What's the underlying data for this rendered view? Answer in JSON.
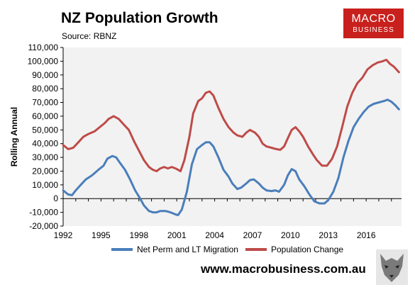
{
  "header": {
    "title": "NZ Population Growth",
    "source": "Source: RBNZ"
  },
  "logo": {
    "line1": "MACRO",
    "line2": "BUSINESS",
    "color": "#c8201c"
  },
  "footer": {
    "url": "www.macrobusiness.com.au"
  },
  "colors": {
    "migration": "#4a7ebb",
    "population": "#be4b48",
    "plot_bg": "#f2f2f2"
  },
  "chart_data": {
    "type": "line",
    "title": "NZ Population Growth",
    "ylabel": "Rolling Annual",
    "xlabel": "",
    "ylim": [
      -20000,
      110000
    ],
    "xlim": [
      1992,
      2018.8
    ],
    "grid": false,
    "legend_placement": "bottom",
    "x_tick_labels": [
      "1992",
      "1995",
      "1998",
      "2001",
      "2004",
      "2007",
      "2010",
      "2013",
      "2016"
    ],
    "y_tick_labels": [
      "110,000",
      "100,000",
      "90,000",
      "80,000",
      "70,000",
      "60,000",
      "50,000",
      "40,000",
      "30,000",
      "20,000",
      "10,000",
      "0",
      "-10,000",
      "-20,000"
    ],
    "series": [
      {
        "name": "Net Perm and LT Migration",
        "color": "#4a7ebb",
        "points": [
          [
            1992.0,
            6000
          ],
          [
            1992.4,
            3000
          ],
          [
            1992.7,
            2500
          ],
          [
            1993.0,
            6000
          ],
          [
            1993.4,
            10000
          ],
          [
            1993.8,
            14000
          ],
          [
            1994.3,
            17000
          ],
          [
            1994.8,
            21000
          ],
          [
            1995.2,
            24000
          ],
          [
            1995.5,
            29000
          ],
          [
            1995.9,
            31000
          ],
          [
            1996.2,
            30000
          ],
          [
            1996.5,
            26000
          ],
          [
            1996.9,
            21000
          ],
          [
            1997.3,
            14000
          ],
          [
            1997.7,
            6000
          ],
          [
            1998.1,
            0
          ],
          [
            1998.4,
            -5000
          ],
          [
            1998.8,
            -9000
          ],
          [
            1999.1,
            -10000
          ],
          [
            1999.4,
            -10000
          ],
          [
            1999.7,
            -9000
          ],
          [
            2000.1,
            -9000
          ],
          [
            2000.5,
            -10000
          ],
          [
            2000.9,
            -11500
          ],
          [
            2001.1,
            -12000
          ],
          [
            2001.4,
            -8000
          ],
          [
            2001.8,
            5000
          ],
          [
            2002.2,
            25000
          ],
          [
            2002.6,
            36000
          ],
          [
            2003.0,
            39000
          ],
          [
            2003.3,
            41000
          ],
          [
            2003.6,
            41000
          ],
          [
            2003.9,
            38000
          ],
          [
            2004.3,
            30000
          ],
          [
            2004.7,
            21000
          ],
          [
            2005.1,
            16000
          ],
          [
            2005.4,
            11000
          ],
          [
            2005.8,
            7000
          ],
          [
            2006.1,
            8000
          ],
          [
            2006.5,
            11000
          ],
          [
            2006.8,
            13500
          ],
          [
            2007.1,
            14000
          ],
          [
            2007.5,
            11000
          ],
          [
            2007.8,
            8000
          ],
          [
            2008.1,
            6000
          ],
          [
            2008.5,
            5500
          ],
          [
            2008.8,
            6000
          ],
          [
            2009.1,
            5000
          ],
          [
            2009.5,
            10000
          ],
          [
            2009.8,
            17000
          ],
          [
            2010.1,
            21500
          ],
          [
            2010.4,
            20000
          ],
          [
            2010.7,
            14000
          ],
          [
            2011.1,
            9000
          ],
          [
            2011.5,
            3000
          ],
          [
            2011.9,
            -2000
          ],
          [
            2012.3,
            -3500
          ],
          [
            2012.7,
            -3500
          ],
          [
            2013.0,
            -1000
          ],
          [
            2013.4,
            5000
          ],
          [
            2013.8,
            15000
          ],
          [
            2014.2,
            30000
          ],
          [
            2014.6,
            42000
          ],
          [
            2015.0,
            52000
          ],
          [
            2015.4,
            58000
          ],
          [
            2015.8,
            63000
          ],
          [
            2016.2,
            67000
          ],
          [
            2016.6,
            69000
          ],
          [
            2017.0,
            70000
          ],
          [
            2017.4,
            71000
          ],
          [
            2017.7,
            72000
          ],
          [
            2018.0,
            70500
          ],
          [
            2018.3,
            68000
          ],
          [
            2018.6,
            65000
          ]
        ]
      },
      {
        "name": "Population Change",
        "color": "#be4b48",
        "points": [
          [
            1992.0,
            39000
          ],
          [
            1992.4,
            36000
          ],
          [
            1992.8,
            37000
          ],
          [
            1993.2,
            41000
          ],
          [
            1993.6,
            45000
          ],
          [
            1994.0,
            47000
          ],
          [
            1994.5,
            49000
          ],
          [
            1994.9,
            52000
          ],
          [
            1995.3,
            55000
          ],
          [
            1995.6,
            58000
          ],
          [
            1996.0,
            60000
          ],
          [
            1996.4,
            58000
          ],
          [
            1996.8,
            54000
          ],
          [
            1997.2,
            50000
          ],
          [
            1997.6,
            42000
          ],
          [
            1998.0,
            35000
          ],
          [
            1998.4,
            28000
          ],
          [
            1998.8,
            23000
          ],
          [
            1999.1,
            21000
          ],
          [
            1999.4,
            20000
          ],
          [
            1999.7,
            22000
          ],
          [
            2000.0,
            23000
          ],
          [
            2000.3,
            22000
          ],
          [
            2000.6,
            23000
          ],
          [
            2000.9,
            22000
          ],
          [
            2001.3,
            20000
          ],
          [
            2001.6,
            28000
          ],
          [
            2002.0,
            45000
          ],
          [
            2002.3,
            62000
          ],
          [
            2002.7,
            71000
          ],
          [
            2003.0,
            73000
          ],
          [
            2003.3,
            77000
          ],
          [
            2003.6,
            78000
          ],
          [
            2003.9,
            75000
          ],
          [
            2004.3,
            66000
          ],
          [
            2004.7,
            58000
          ],
          [
            2005.1,
            52000
          ],
          [
            2005.5,
            48000
          ],
          [
            2005.8,
            46000
          ],
          [
            2006.2,
            45000
          ],
          [
            2006.5,
            48000
          ],
          [
            2006.8,
            50000
          ],
          [
            2007.2,
            48000
          ],
          [
            2007.5,
            45000
          ],
          [
            2007.8,
            40000
          ],
          [
            2008.1,
            38000
          ],
          [
            2008.5,
            37000
          ],
          [
            2008.9,
            36000
          ],
          [
            2009.2,
            35500
          ],
          [
            2009.5,
            38000
          ],
          [
            2009.8,
            44000
          ],
          [
            2010.1,
            50000
          ],
          [
            2010.4,
            52000
          ],
          [
            2010.7,
            49000
          ],
          [
            2011.0,
            45000
          ],
          [
            2011.4,
            38000
          ],
          [
            2011.8,
            32000
          ],
          [
            2012.1,
            28000
          ],
          [
            2012.5,
            24000
          ],
          [
            2012.9,
            24000
          ],
          [
            2013.3,
            29000
          ],
          [
            2013.7,
            38000
          ],
          [
            2014.1,
            52000
          ],
          [
            2014.5,
            67000
          ],
          [
            2014.9,
            77000
          ],
          [
            2015.3,
            84000
          ],
          [
            2015.7,
            88000
          ],
          [
            2016.1,
            94000
          ],
          [
            2016.5,
            97000
          ],
          [
            2016.9,
            99000
          ],
          [
            2017.3,
            100000
          ],
          [
            2017.6,
            101000
          ],
          [
            2017.9,
            98000
          ],
          [
            2018.2,
            96000
          ],
          [
            2018.6,
            92000
          ]
        ]
      }
    ]
  }
}
